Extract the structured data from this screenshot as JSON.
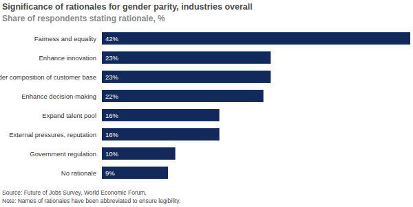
{
  "chart_data": {
    "type": "bar",
    "orientation": "horizontal",
    "title": "Significance of rationales for gender parity, industries overall",
    "subtitle": "Share of respondents stating rationale, %",
    "categories": [
      "Fairness and equality",
      "Enhance innovation",
      "Reflect gender composition of customer base",
      "Enhance decision-making",
      "Expand talent pool",
      "External pressures, reputation",
      "Government regulation",
      "No rationale"
    ],
    "values": [
      42,
      23,
      23,
      22,
      16,
      16,
      10,
      9
    ],
    "value_labels": [
      "42%",
      "23%",
      "23%",
      "22%",
      "16%",
      "16%",
      "10%",
      "9%"
    ],
    "color": "#11295b",
    "xlim": [
      0,
      42
    ],
    "data_labels": true,
    "tick_labels": false,
    "grid": false,
    "source": "Source: Future of Jobs Survey, World Economic Forum.",
    "note": "Note: Names of rationales have been abbreviated to ensure legibility."
  }
}
